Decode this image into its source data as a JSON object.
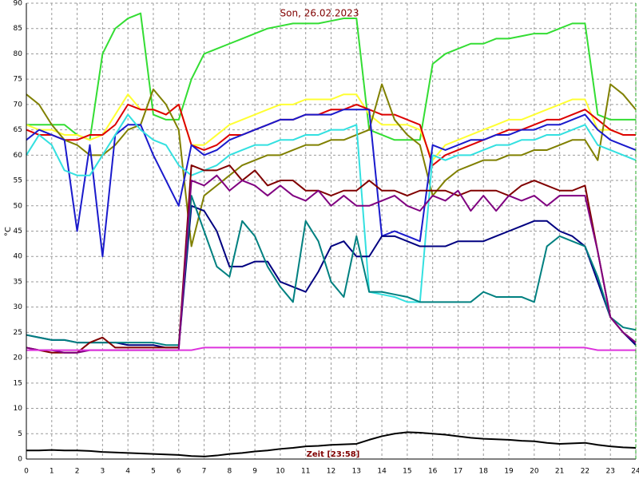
{
  "chart_data": {
    "type": "line",
    "title": "Son, 26.02.2023",
    "xlabel": "Zeit [23:58]",
    "ylabel": "°C",
    "x": [
      0,
      0.5,
      1,
      1.5,
      2,
      2.5,
      3,
      3.5,
      4,
      4.5,
      5,
      5.5,
      6,
      6.5,
      7,
      7.5,
      8,
      8.5,
      9,
      9.5,
      10,
      10.5,
      11,
      11.5,
      12,
      12.5,
      13,
      13.5,
      14,
      14.5,
      15,
      15.5,
      16,
      16.5,
      17,
      17.5,
      18,
      18.5,
      19,
      19.5,
      20,
      20.5,
      21,
      21.5,
      22,
      22.5,
      23,
      23.5,
      24
    ],
    "xlim": [
      0,
      24
    ],
    "xticks": [
      0,
      1,
      2,
      3,
      4,
      5,
      6,
      7,
      8,
      9,
      10,
      11,
      12,
      13,
      14,
      15,
      16,
      17,
      18,
      19,
      20,
      21,
      22,
      23,
      24
    ],
    "ylim": [
      0,
      90
    ],
    "yticks": [
      0,
      5,
      10,
      15,
      20,
      25,
      30,
      35,
      40,
      45,
      50,
      55,
      60,
      65,
      70,
      75,
      80,
      85,
      90
    ],
    "grid": true,
    "series": [
      {
        "color": "#33dd33",
        "values": [
          66,
          66,
          66,
          66,
          64,
          63,
          80,
          85,
          87,
          88,
          68,
          67,
          67,
          75,
          80,
          81,
          82,
          83,
          84,
          85,
          85.5,
          86,
          86,
          86,
          86.5,
          87,
          87,
          65,
          64,
          63,
          63,
          63,
          78,
          80,
          81,
          82,
          82,
          83,
          83,
          83.5,
          84,
          84,
          85,
          86,
          86,
          68,
          67,
          67,
          67
        ]
      },
      {
        "color": "#ffff33",
        "values": [
          66,
          65,
          65,
          64,
          64,
          63,
          64,
          68,
          72,
          69,
          69,
          68,
          70,
          62,
          62,
          64,
          66,
          67,
          68,
          69,
          70,
          70,
          71,
          71,
          71,
          72,
          72,
          68,
          66,
          66,
          66,
          65,
          59,
          62,
          63,
          64,
          65,
          66,
          67,
          67,
          68,
          69,
          70,
          71,
          71,
          65,
          65,
          64,
          64
        ]
      },
      {
        "color": "#dd0000",
        "values": [
          65,
          64,
          64,
          63,
          63,
          64,
          64,
          66,
          70,
          69,
          69,
          68,
          70,
          62,
          61,
          62,
          64,
          64,
          65,
          66,
          67,
          67,
          68,
          68,
          69,
          69,
          70,
          69,
          68,
          68,
          67,
          66,
          58,
          60,
          61,
          62,
          63,
          64,
          65,
          65,
          66,
          67,
          67,
          68,
          69,
          67,
          65,
          64,
          64
        ]
      },
      {
        "color": "#808000",
        "values": [
          72,
          70,
          66,
          63,
          62,
          60,
          60,
          62,
          65,
          66,
          73,
          70,
          65,
          42,
          52,
          54,
          56,
          58,
          59,
          60,
          60,
          61,
          62,
          62,
          63,
          63,
          64,
          65,
          74,
          67,
          64,
          62,
          52,
          55,
          57,
          58,
          59,
          59,
          60,
          60,
          61,
          61,
          62,
          63,
          63,
          59,
          74,
          72,
          69
        ]
      },
      {
        "color": "#1a1acc",
        "values": [
          63,
          65,
          64,
          63,
          45,
          62,
          40,
          64,
          66,
          66,
          60,
          55,
          50,
          62,
          60,
          61,
          63,
          64,
          65,
          66,
          67,
          67,
          68,
          68,
          68,
          69,
          69,
          69,
          44,
          45,
          44,
          43,
          62,
          61,
          62,
          63,
          63,
          64,
          64,
          65,
          65,
          66,
          66,
          67,
          68,
          65,
          63,
          62,
          61
        ]
      },
      {
        "color": "#33e0e0",
        "values": [
          60,
          64,
          62,
          57,
          56,
          56,
          60,
          64,
          68,
          65,
          63,
          62,
          58,
          56,
          57,
          58,
          60,
          61,
          62,
          62,
          63,
          63,
          64,
          64,
          65,
          65,
          66,
          33,
          32.5,
          32,
          31,
          31,
          60,
          59,
          60,
          60,
          61,
          62,
          62,
          63,
          63,
          64,
          64,
          65,
          66,
          62,
          61,
          60,
          59
        ]
      },
      {
        "color": "#000080",
        "values": [
          24.5,
          24,
          23.5,
          23.5,
          23,
          23,
          23,
          23,
          22.5,
          22.5,
          22.5,
          22,
          22,
          50,
          49,
          45,
          38,
          38,
          39,
          39,
          35,
          34,
          33,
          37,
          42,
          43,
          40,
          40,
          44,
          44,
          43,
          42,
          42,
          42,
          43,
          43,
          43,
          44,
          45,
          46,
          47,
          47,
          45,
          44,
          42,
          35,
          28,
          25,
          22.5
        ]
      },
      {
        "color": "#008080",
        "values": [
          24.5,
          24,
          23.5,
          23.5,
          23,
          23,
          23,
          23,
          23,
          23,
          23,
          22.5,
          22.5,
          52,
          45,
          38,
          36,
          47,
          44,
          38,
          34,
          31,
          47,
          43,
          35,
          32,
          44,
          33,
          33,
          32.5,
          32,
          31,
          31,
          31,
          31,
          31,
          33,
          32,
          32,
          32,
          31,
          42,
          44,
          43,
          42,
          36,
          28,
          26,
          25.5
        ]
      },
      {
        "color": "#800000",
        "values": [
          22,
          21.5,
          21,
          21,
          21,
          23,
          24,
          22,
          22,
          22,
          22,
          22,
          22,
          58,
          57,
          57,
          58,
          55,
          57,
          54,
          55,
          55,
          53,
          53,
          52,
          53,
          53,
          55,
          53,
          53,
          52,
          53,
          53,
          53,
          52,
          53,
          53,
          53,
          52,
          54,
          55,
          54,
          53,
          53,
          54,
          41,
          28,
          25,
          23
        ]
      },
      {
        "color": "#800080",
        "values": [
          22,
          21.5,
          21.5,
          21,
          21,
          21.5,
          21.5,
          21.5,
          21.5,
          21.5,
          21.5,
          21.5,
          21.5,
          55,
          54,
          56,
          53,
          55,
          54,
          52,
          54,
          52,
          51,
          53,
          50,
          52,
          50,
          50,
          51,
          52,
          50,
          49,
          52,
          51,
          53,
          49,
          52,
          49,
          52,
          51,
          52,
          50,
          52,
          52,
          52,
          41,
          28,
          25,
          23
        ]
      },
      {
        "color": "#dd33dd",
        "values": [
          21.5,
          21.5,
          21.5,
          21.5,
          21.5,
          21.5,
          21.5,
          21.5,
          21.5,
          21.5,
          21.5,
          21.5,
          21.5,
          21.5,
          22,
          22,
          22,
          22,
          22,
          22,
          22,
          22,
          22,
          22,
          22,
          22,
          22,
          22,
          22,
          22,
          22,
          22,
          22,
          22,
          22,
          22,
          22,
          22,
          22,
          22,
          22,
          22,
          22,
          22,
          22,
          21.5,
          21.5,
          21.5,
          21.5
        ]
      },
      {
        "color": "#000000",
        "values": [
          1.7,
          1.7,
          1.8,
          1.7,
          1.7,
          1.6,
          1.4,
          1.3,
          1.2,
          1.1,
          1,
          0.9,
          0.8,
          0.6,
          0.5,
          0.7,
          1,
          1.2,
          1.5,
          1.7,
          2,
          2.2,
          2.5,
          2.6,
          2.8,
          2.9,
          3,
          3.8,
          4.5,
          5,
          5.3,
          5.2,
          5,
          4.8,
          4.5,
          4.2,
          4,
          3.9,
          3.8,
          3.6,
          3.5,
          3.2,
          3,
          3.1,
          3.2,
          2.8,
          2.5,
          2.3,
          2.2
        ]
      }
    ]
  }
}
